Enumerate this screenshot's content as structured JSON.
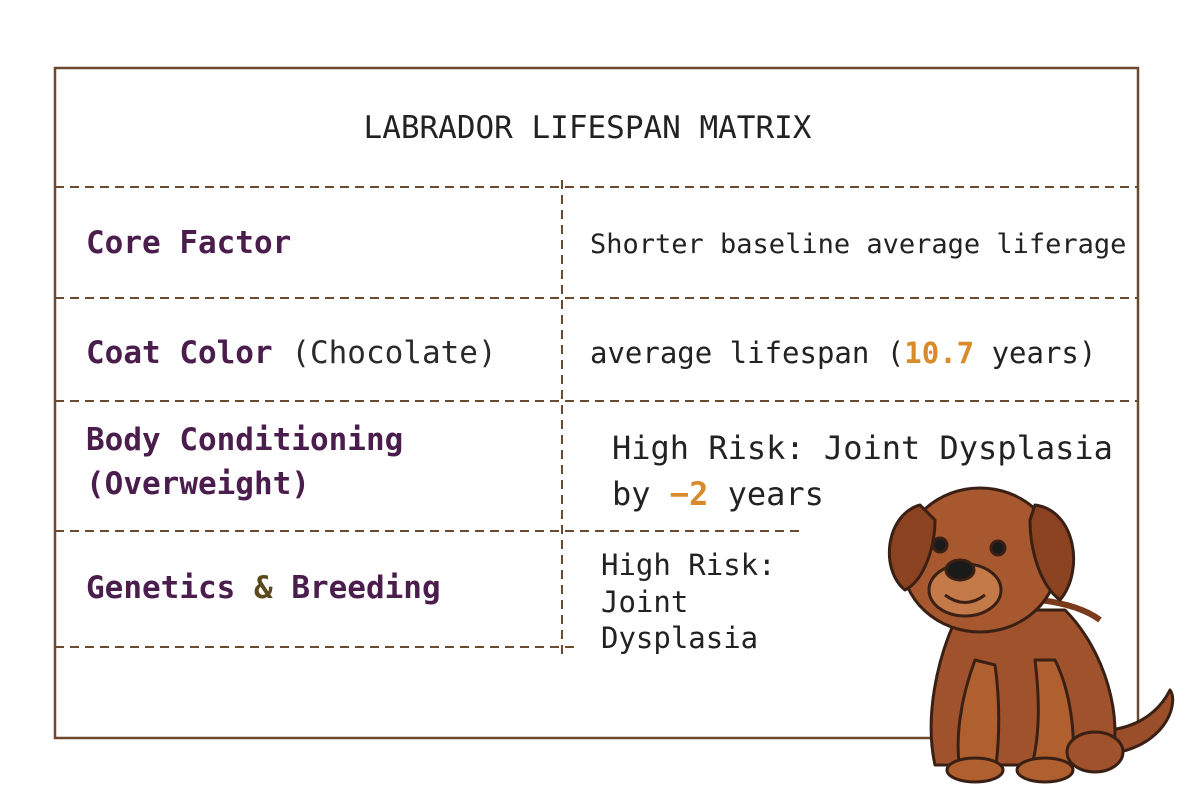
{
  "title": "LABRADOR LIFESPAN MATRIX",
  "rows": [
    {
      "left": [
        "Core Factor"
      ],
      "right": [
        "Shorter baseline average liferage"
      ]
    },
    {
      "left": [
        "Coat Color ",
        "(Chocolate)"
      ],
      "right": [
        "average lifespan (",
        "10.7",
        " years)"
      ]
    },
    {
      "left": [
        "Body Conditioning",
        "(Overweight)"
      ],
      "right": [
        "High Risk: Joint Dysplasia",
        "by ",
        "−2",
        " years"
      ]
    },
    {
      "left": [
        "Genetics ",
        "&",
        " Breeding"
      ],
      "right": [
        "High Risk:",
        "Joint",
        "Dysplasia"
      ]
    }
  ]
}
